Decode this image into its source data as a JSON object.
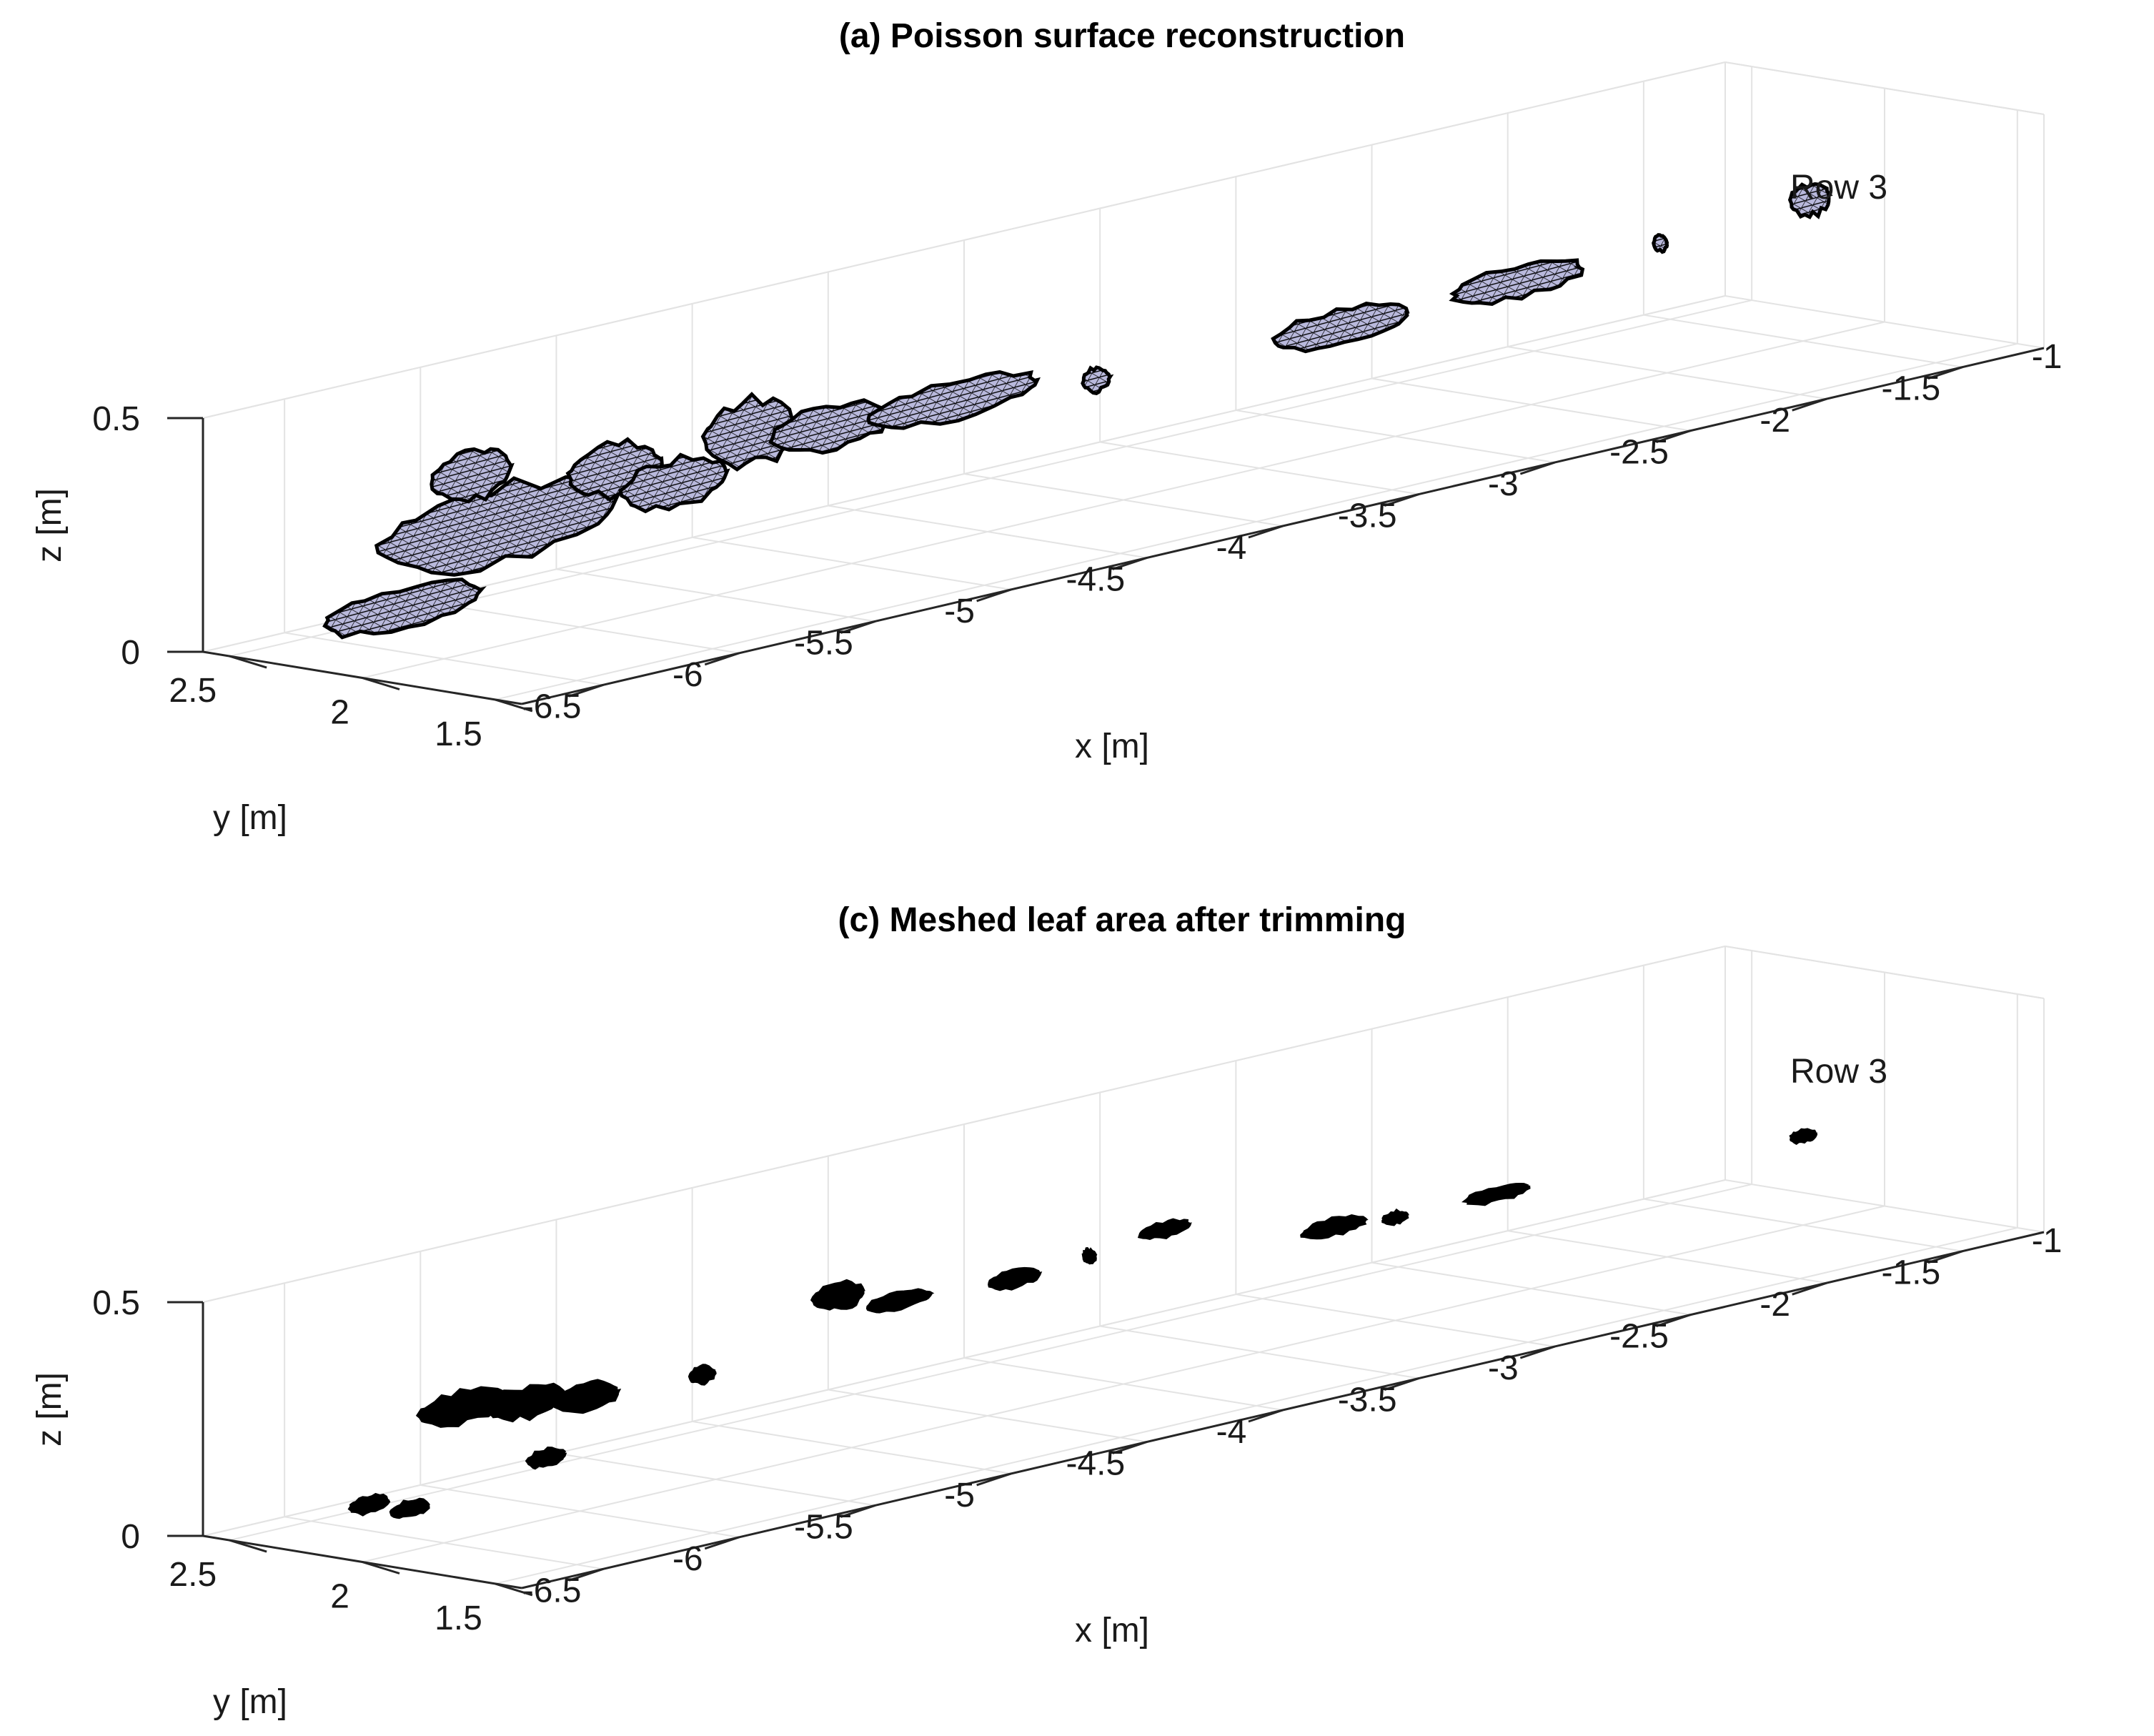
{
  "chart_data": [
    {
      "type": "3d-surface",
      "title": "(a) Poisson surface reconstruction",
      "xlabel": "x [m]",
      "ylabel": "y [m]",
      "zlabel": "z [m]",
      "xlim": [
        -6.8,
        -1.2
      ],
      "ylim": [
        1.4,
        2.6
      ],
      "zlim": [
        0,
        0.5
      ],
      "x_ticks": [
        "-6.5",
        "-6",
        "-5.5",
        "-5",
        "-4.5",
        "-4",
        "-3.5",
        "-3",
        "-2.5",
        "-2",
        "-1.5",
        "-1"
      ],
      "x_tick_values": [
        -6.5,
        -6,
        -5.5,
        -5,
        -4.5,
        -4,
        -3.5,
        -3,
        -2.5,
        -2,
        -1.5,
        -1
      ],
      "y_ticks": [
        "1.5",
        "2",
        "2.5"
      ],
      "y_tick_values": [
        1.5,
        2,
        2.5
      ],
      "z_ticks": [
        "0",
        "0.5"
      ],
      "z_tick_values": [
        0,
        0.5
      ],
      "annotation": "Row 3",
      "grid": true,
      "style": "mesh",
      "colors": {
        "face": "#b9b9dc",
        "edge": "#000000"
      },
      "blobs": [
        {
          "x0": -6.95,
          "x1": -6.35,
          "y": 2.0,
          "z": 0.13,
          "h": 0.07
        },
        {
          "x0": -6.75,
          "x1": -5.85,
          "y": 2.0,
          "z": 0.26,
          "h": 0.14
        },
        {
          "x0": -6.55,
          "x1": -6.25,
          "y": 2.0,
          "z": 0.38,
          "h": 0.09
        },
        {
          "x0": -6.05,
          "x1": -5.7,
          "y": 2.0,
          "z": 0.32,
          "h": 0.09
        },
        {
          "x0": -5.85,
          "x1": -5.45,
          "y": 2.0,
          "z": 0.26,
          "h": 0.08
        },
        {
          "x0": -5.55,
          "x1": -5.2,
          "y": 2.0,
          "z": 0.33,
          "h": 0.12
        },
        {
          "x0": -5.3,
          "x1": -4.85,
          "y": 2.0,
          "z": 0.3,
          "h": 0.08
        },
        {
          "x0": -4.95,
          "x1": -4.3,
          "y": 2.0,
          "z": 0.3,
          "h": 0.06
        },
        {
          "x0": -4.15,
          "x1": -4.05,
          "y": 2.0,
          "z": 0.27,
          "h": 0.03
        },
        {
          "x0": -3.45,
          "x1": -2.95,
          "y": 2.0,
          "z": 0.26,
          "h": 0.06
        },
        {
          "x0": -2.8,
          "x1": -2.3,
          "y": 2.0,
          "z": 0.27,
          "h": 0.05
        },
        {
          "x0": -2.05,
          "x1": -2.0,
          "y": 2.0,
          "z": 0.28,
          "h": 0.015
        },
        {
          "x0": -1.55,
          "x1": -1.4,
          "y": 2.0,
          "z": 0.3,
          "h": 0.05
        }
      ]
    },
    {
      "type": "3d-surface",
      "title": "(c) Meshed leaf area after trimming",
      "xlabel": "x [m]",
      "ylabel": "y [m]",
      "zlabel": "z [m]",
      "xlim": [
        -6.8,
        -1.2
      ],
      "ylim": [
        1.4,
        2.6
      ],
      "zlim": [
        0,
        0.5
      ],
      "x_ticks": [
        "-6.5",
        "-6",
        "-5.5",
        "-5",
        "-4.5",
        "-4",
        "-3.5",
        "-3",
        "-2.5",
        "-2",
        "-1.5",
        "-1"
      ],
      "x_tick_values": [
        -6.5,
        -6,
        -5.5,
        -5,
        -4.5,
        -4,
        -3.5,
        -3,
        -2.5,
        -2,
        -1.5,
        -1
      ],
      "y_ticks": [
        "1.5",
        "2",
        "2.5"
      ],
      "y_tick_values": [
        1.5,
        2,
        2.5
      ],
      "z_ticks": [
        "0",
        "0.5"
      ],
      "z_tick_values": [
        0,
        0.5
      ],
      "annotation": "Row 3",
      "grid": true,
      "style": "patches",
      "colors": {
        "face": "#000000",
        "edge": "#000000"
      },
      "blobs": [
        {
          "x0": -6.85,
          "x1": -6.7,
          "y": 2.0,
          "z": 0.12,
          "h": 0.02
        },
        {
          "x0": -6.7,
          "x1": -6.55,
          "y": 2.0,
          "z": 0.09,
          "h": 0.02
        },
        {
          "x0": -6.6,
          "x1": -6.25,
          "y": 2.0,
          "z": 0.28,
          "h": 0.05
        },
        {
          "x0": -6.35,
          "x1": -6.05,
          "y": 2.0,
          "z": 0.26,
          "h": 0.05
        },
        {
          "x0": -6.1,
          "x1": -5.85,
          "y": 2.0,
          "z": 0.24,
          "h": 0.04
        },
        {
          "x0": -6.2,
          "x1": -6.05,
          "y": 2.0,
          "z": 0.13,
          "h": 0.02
        },
        {
          "x0": -5.6,
          "x1": -5.5,
          "y": 2.0,
          "z": 0.23,
          "h": 0.02
        },
        {
          "x0": -5.15,
          "x1": -4.95,
          "y": 2.0,
          "z": 0.33,
          "h": 0.04
        },
        {
          "x0": -4.95,
          "x1": -4.7,
          "y": 2.0,
          "z": 0.29,
          "h": 0.02
        },
        {
          "x0": -4.5,
          "x1": -4.3,
          "y": 2.0,
          "z": 0.28,
          "h": 0.02
        },
        {
          "x0": -4.15,
          "x1": -4.1,
          "y": 2.0,
          "z": 0.29,
          "h": 0.015
        },
        {
          "x0": -3.95,
          "x1": -3.75,
          "y": 2.0,
          "z": 0.31,
          "h": 0.015
        },
        {
          "x0": -3.35,
          "x1": -3.1,
          "y": 2.0,
          "z": 0.23,
          "h": 0.02
        },
        {
          "x0": -3.05,
          "x1": -2.95,
          "y": 2.0,
          "z": 0.22,
          "h": 0.01
        },
        {
          "x0": -2.75,
          "x1": -2.5,
          "y": 2.0,
          "z": 0.22,
          "h": 0.015
        },
        {
          "x0": -1.55,
          "x1": -1.45,
          "y": 2.0,
          "z": 0.19,
          "h": 0.01
        }
      ]
    }
  ]
}
